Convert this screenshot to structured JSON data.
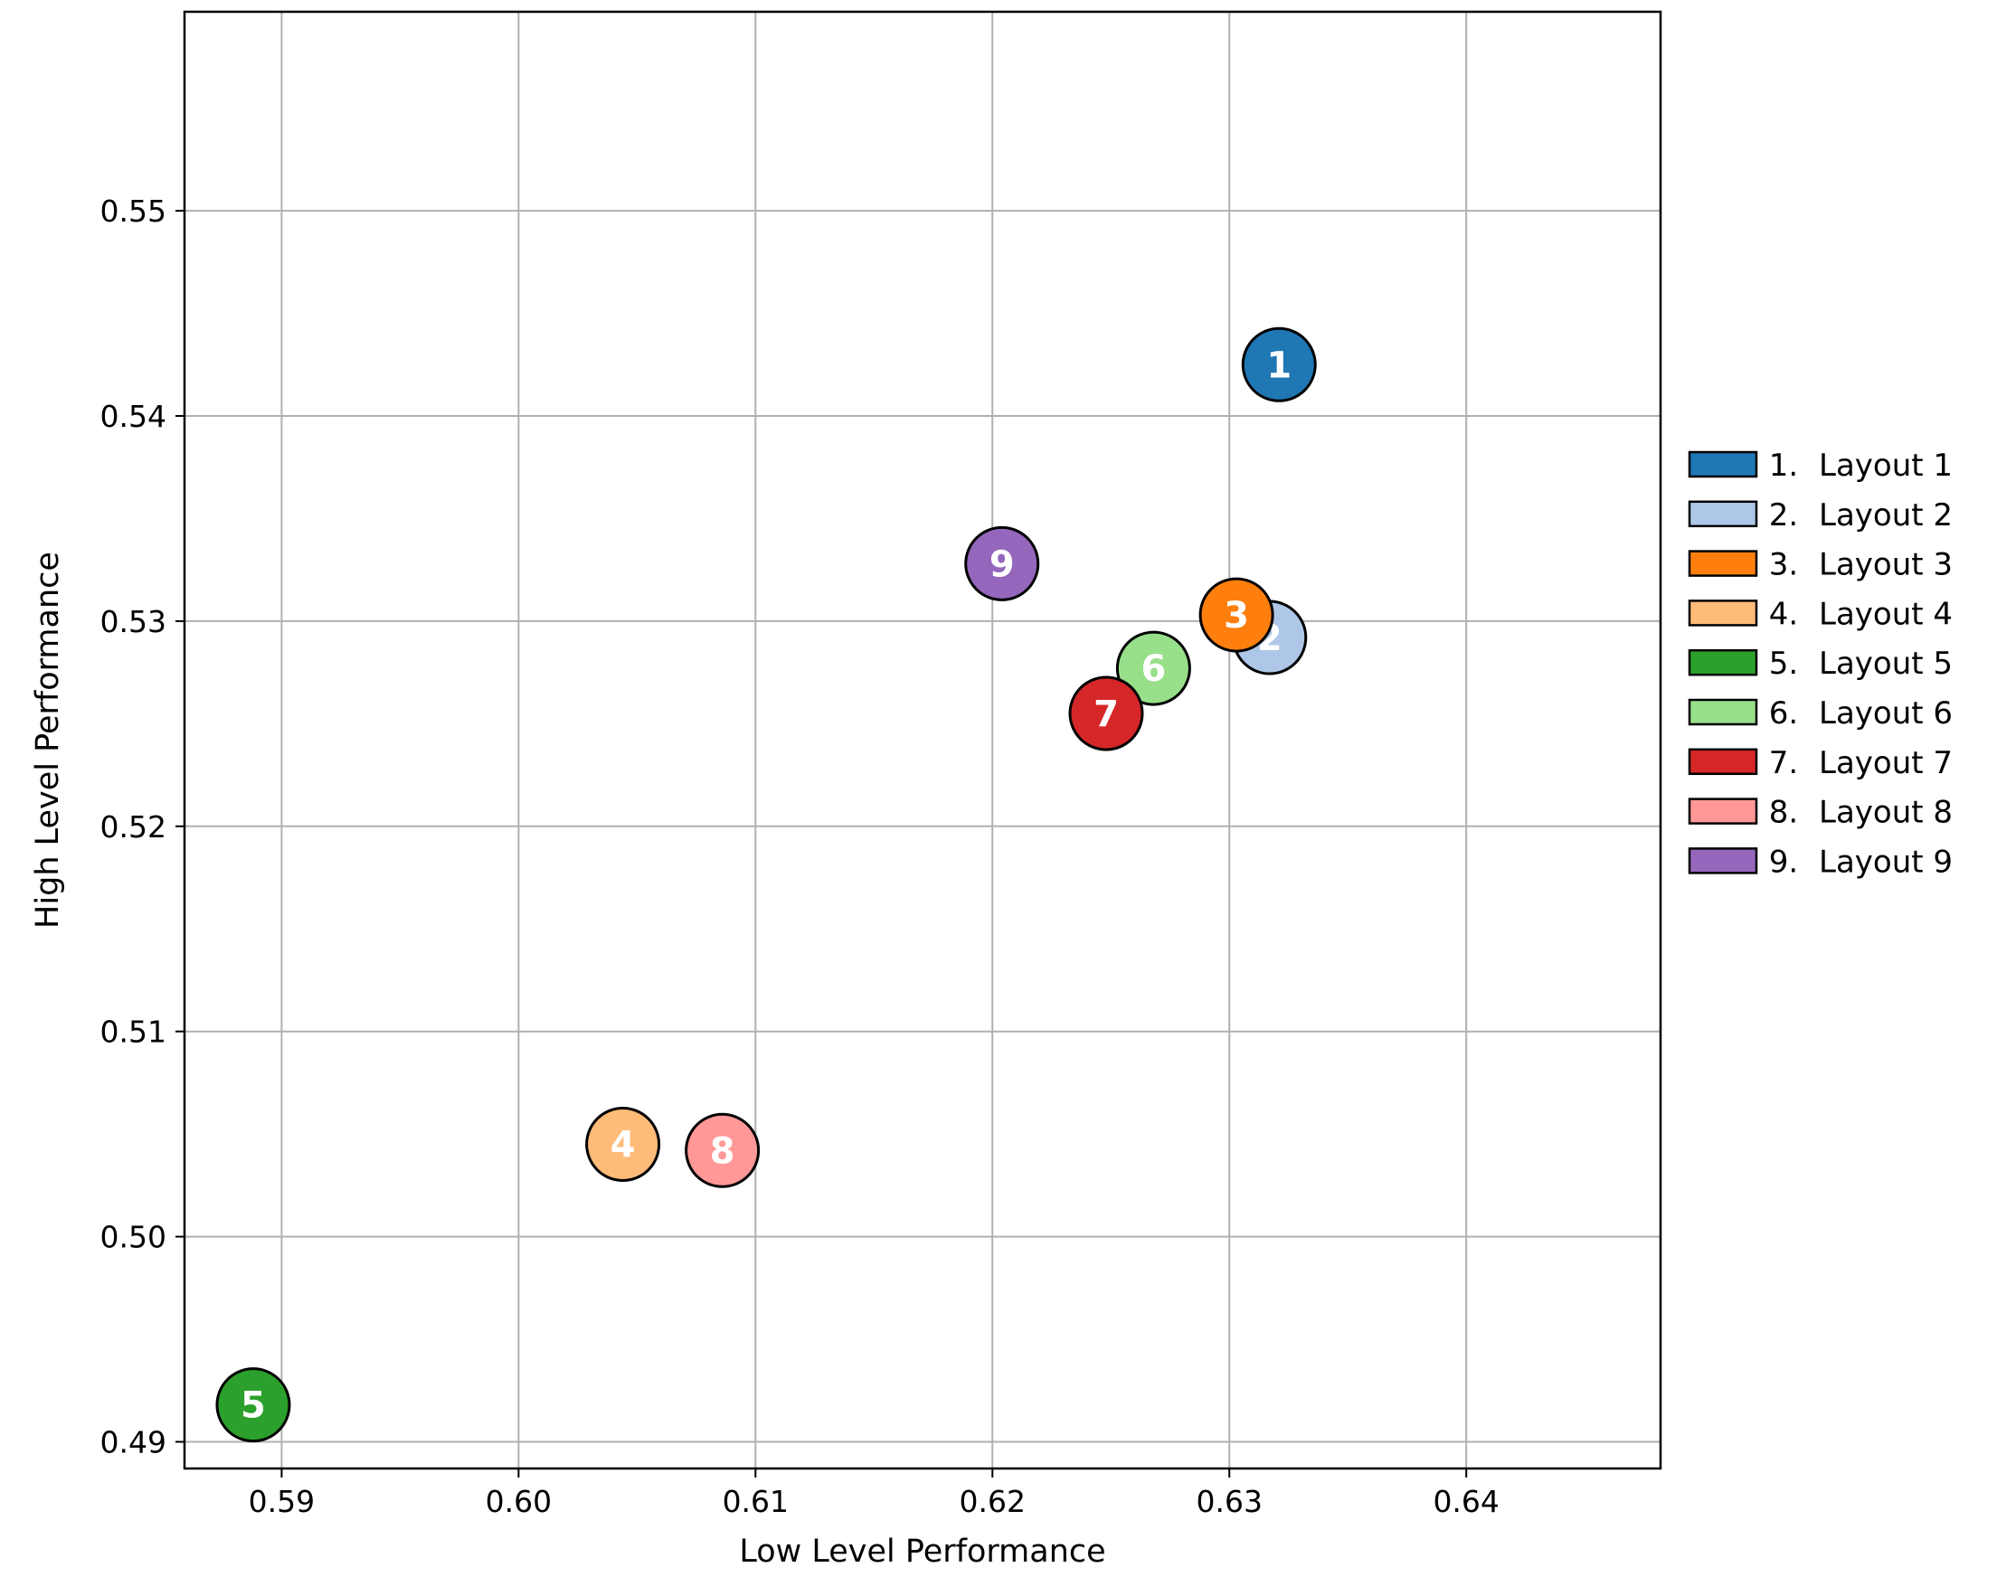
{
  "chart_data": {
    "type": "scatter",
    "title": "",
    "xlabel": "Low Level Performance",
    "ylabel": "High Level Performance",
    "xlim": [
      0.5859,
      0.6482
    ],
    "ylim": [
      0.4887,
      0.5597
    ],
    "xticks": [
      "0.59",
      "0.60",
      "0.61",
      "0.62",
      "0.63",
      "0.64"
    ],
    "yticks": [
      "0.49",
      "0.50",
      "0.51",
      "0.52",
      "0.53",
      "0.54",
      "0.55"
    ],
    "grid": true,
    "legend_position": "right",
    "points": [
      {
        "id": "1",
        "x": 0.6321,
        "y": 0.5425,
        "color": "#1f77b4"
      },
      {
        "id": "2",
        "x": 0.6317,
        "y": 0.5292,
        "color": "#aec7e8"
      },
      {
        "id": "3",
        "x": 0.6303,
        "y": 0.5303,
        "color": "#ff7f0e"
      },
      {
        "id": "4",
        "x": 0.6044,
        "y": 0.5045,
        "color": "#ffbb78"
      },
      {
        "id": "5",
        "x": 0.5888,
        "y": 0.4918,
        "color": "#2ca02c"
      },
      {
        "id": "6",
        "x": 0.6268,
        "y": 0.5277,
        "color": "#98df8a"
      },
      {
        "id": "7",
        "x": 0.6248,
        "y": 0.5255,
        "color": "#d62728"
      },
      {
        "id": "8",
        "x": 0.6086,
        "y": 0.5042,
        "color": "#ff9896"
      },
      {
        "id": "9",
        "x": 0.6204,
        "y": 0.5328,
        "color": "#9467bd"
      }
    ],
    "legend": [
      {
        "num": "1.",
        "label": "Layout 1",
        "color": "#1f77b4"
      },
      {
        "num": "2.",
        "label": "Layout 2",
        "color": "#aec7e8"
      },
      {
        "num": "3.",
        "label": "Layout 3",
        "color": "#ff7f0e"
      },
      {
        "num": "4.",
        "label": "Layout 4",
        "color": "#ffbb78"
      },
      {
        "num": "5.",
        "label": "Layout 5",
        "color": "#2ca02c"
      },
      {
        "num": "6.",
        "label": "Layout 6",
        "color": "#98df8a"
      },
      {
        "num": "7.",
        "label": "Layout 7",
        "color": "#d62728"
      },
      {
        "num": "8.",
        "label": "Layout 8",
        "color": "#ff9896"
      },
      {
        "num": "9.",
        "label": "Layout 9",
        "color": "#9467bd"
      }
    ]
  }
}
